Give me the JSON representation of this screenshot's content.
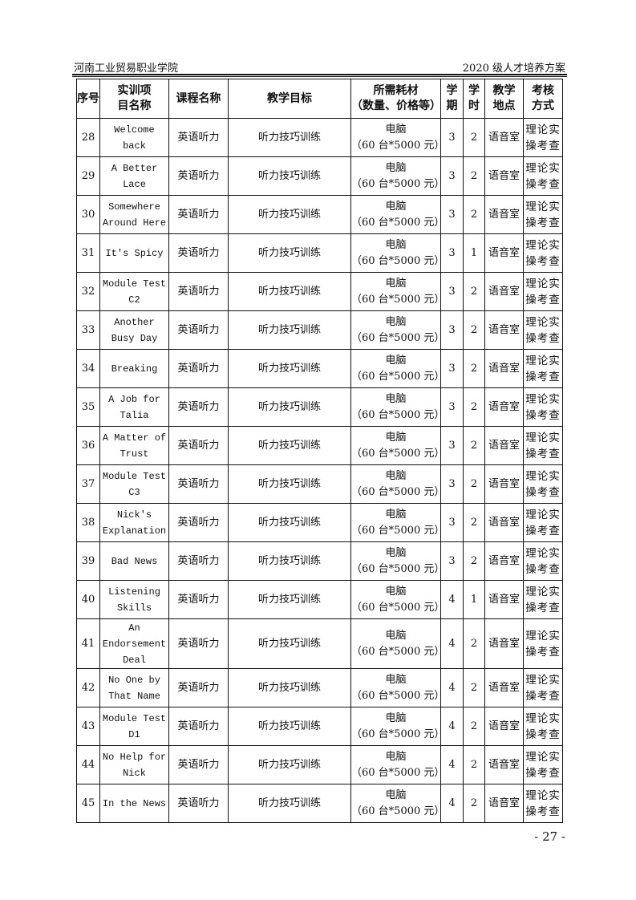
{
  "header": {
    "left": "河南工业贸易职业学院",
    "right": "2020 级人才培养方案"
  },
  "table": {
    "columns": [
      "序号",
      "实训项目名称",
      "课程名称",
      "教学目标",
      "所需耗材（数量、价格等）",
      "学期",
      "学时",
      "教学地点",
      "考核方式"
    ],
    "column_lines": [
      [
        "序号"
      ],
      [
        "实训项",
        "目名称"
      ],
      [
        "课程名称"
      ],
      [
        "教学目标"
      ],
      [
        "所需耗材",
        "（数量、价格等）"
      ],
      [
        "学",
        "期"
      ],
      [
        "学",
        "时"
      ],
      [
        "教学",
        "地点"
      ],
      [
        "考核",
        "方式"
      ]
    ],
    "rows": [
      {
        "no": "28",
        "name": "Welcome back",
        "course": "英语听力",
        "goal": "听力技巧训练",
        "m1": "电脑",
        "m2": "（60 台*5000 元）",
        "term": "3",
        "hours": "2",
        "place": "语音室",
        "assess": "理论实操考查"
      },
      {
        "no": "29",
        "name": "A Better Lace",
        "course": "英语听力",
        "goal": "听力技巧训练",
        "m1": "电脑",
        "m2": "（60 台*5000 元）",
        "term": "3",
        "hours": "2",
        "place": "语音室",
        "assess": "理论实操考查"
      },
      {
        "no": "30",
        "name": "Somewhere Around Here",
        "course": "英语听力",
        "goal": "听力技巧训练",
        "m1": "电脑",
        "m2": "（60 台*5000 元）",
        "term": "3",
        "hours": "2",
        "place": "语音室",
        "assess": "理论实操考查"
      },
      {
        "no": "31",
        "name": "It's Spicy",
        "course": "英语听力",
        "goal": "听力技巧训练",
        "m1": "电脑",
        "m2": "（60 台*5000 元）",
        "term": "3",
        "hours": "1",
        "place": "语音室",
        "assess": "理论实操考查"
      },
      {
        "no": "32",
        "name": "Module Test C2",
        "course": "英语听力",
        "goal": "听力技巧训练",
        "m1": "电脑",
        "m2": "（60 台*5000 元）",
        "term": "3",
        "hours": "2",
        "place": "语音室",
        "assess": "理论实操考查"
      },
      {
        "no": "33",
        "name": "Another Busy Day",
        "course": "英语听力",
        "goal": "听力技巧训练",
        "m1": "电脑",
        "m2": "（60 台*5000 元）",
        "term": "3",
        "hours": "2",
        "place": "语音室",
        "assess": "理论实操考查"
      },
      {
        "no": "34",
        "name": "Breaking",
        "course": "英语听力",
        "goal": "听力技巧训练",
        "m1": "电脑",
        "m2": "（60 台*5000 元）",
        "term": "3",
        "hours": "2",
        "place": "语音室",
        "assess": "理论实操考查"
      },
      {
        "no": "35",
        "name": "A Job for Talia",
        "course": "英语听力",
        "goal": "听力技巧训练",
        "m1": "电脑",
        "m2": "（60 台*5000 元）",
        "term": "3",
        "hours": "2",
        "place": "语音室",
        "assess": "理论实操考查"
      },
      {
        "no": "36",
        "name": "A Matter of Trust",
        "course": "英语听力",
        "goal": "听力技巧训练",
        "m1": "电脑",
        "m2": "（60 台*5000 元）",
        "term": "3",
        "hours": "2",
        "place": "语音室",
        "assess": "理论实操考查"
      },
      {
        "no": "37",
        "name": "Module Test C3",
        "course": "英语听力",
        "goal": "听力技巧训练",
        "m1": "电脑",
        "m2": "（60 台*5000 元）",
        "term": "3",
        "hours": "2",
        "place": "语音室",
        "assess": "理论实操考查"
      },
      {
        "no": "38",
        "name": "Nick's Explanation",
        "course": "英语听力",
        "goal": "听力技巧训练",
        "m1": "电脑",
        "m2": "（60 台*5000 元）",
        "term": "3",
        "hours": "2",
        "place": "语音室",
        "assess": "理论实操考查"
      },
      {
        "no": "39",
        "name": "Bad News",
        "course": "英语听力",
        "goal": "听力技巧训练",
        "m1": "电脑",
        "m2": "（60 台*5000 元）",
        "term": "3",
        "hours": "2",
        "place": "语音室",
        "assess": "理论实操考查"
      },
      {
        "no": "40",
        "name": "Listening Skills",
        "course": "英语听力",
        "goal": "听力技巧训练",
        "m1": "电脑",
        "m2": "（60 台*5000 元）",
        "term": "4",
        "hours": "1",
        "place": "语音室",
        "assess": "理论实操考查"
      },
      {
        "no": "41",
        "name": "An Endorsement Deal",
        "course": "英语听力",
        "goal": "听力技巧训练",
        "m1": "电脑",
        "m2": "（60 台*5000 元）",
        "term": "4",
        "hours": "2",
        "place": "语音室",
        "assess": "理论实操考查"
      },
      {
        "no": "42",
        "name": "No One by That Name",
        "course": "英语听力",
        "goal": "听力技巧训练",
        "m1": "电脑",
        "m2": "（60 台*5000 元）",
        "term": "4",
        "hours": "2",
        "place": "语音室",
        "assess": "理论实操考查"
      },
      {
        "no": "43",
        "name": "Module Test D1",
        "course": "英语听力",
        "goal": "听力技巧训练",
        "m1": "电脑",
        "m2": "（60 台*5000 元）",
        "term": "4",
        "hours": "2",
        "place": "语音室",
        "assess": "理论实操考查"
      },
      {
        "no": "44",
        "name": "No Help for Nick",
        "course": "英语听力",
        "goal": "听力技巧训练",
        "m1": "电脑",
        "m2": "（60 台*5000 元）",
        "term": "4",
        "hours": "2",
        "place": "语音室",
        "assess": "理论实操考查"
      },
      {
        "no": "45",
        "name": "In the News",
        "course": "英语听力",
        "goal": "听力技巧训练",
        "m1": "电脑",
        "m2": "（60 台*5000 元）",
        "term": "4",
        "hours": "2",
        "place": "语音室",
        "assess": "理论实操考查"
      }
    ]
  },
  "footer": {
    "page_number": "- 27 -"
  }
}
